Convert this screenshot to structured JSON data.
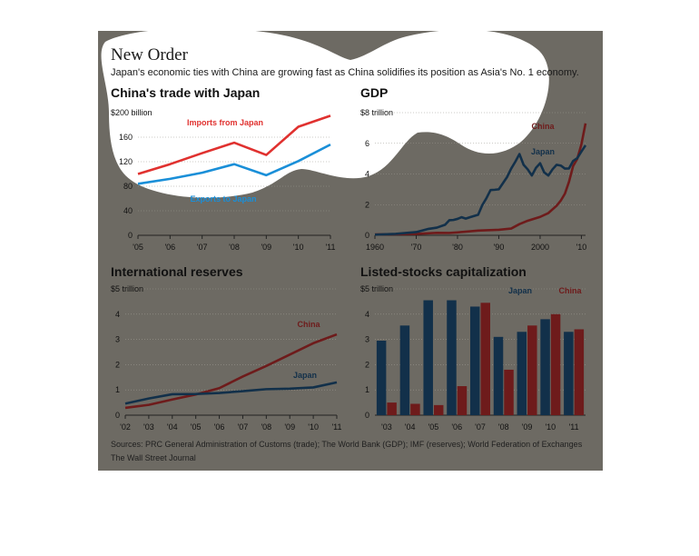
{
  "title": "New Order",
  "subtitle": "Japan's economic ties with China are growing fast as China solidifies its position as Asia's No. 1 economy.",
  "footer": {
    "sources": "Sources: PRC General Administration of Customs (trade); The World Bank (GDP); IMF (reserves); World Federation of Exchanges",
    "credit": "The Wall Street Journal"
  },
  "colors": {
    "background": "#6d6a63",
    "highlight": "#ffffff",
    "china_red": "#6e1b1b",
    "japan_blue": "#12304a",
    "imports_red": "#e0312f",
    "exports_blue": "#1a8fd8"
  },
  "chart_data": [
    {
      "type": "line",
      "title": "China's trade with Japan",
      "yunit_label": "$200 billion",
      "ylim": [
        0,
        200
      ],
      "yticks": [
        0,
        40,
        80,
        120,
        160,
        200
      ],
      "x": [
        2005,
        2006,
        2007,
        2008,
        2009,
        2010,
        2011
      ],
      "xtick_labels": [
        "'05",
        "'06",
        "'07",
        "'08",
        "'09",
        "'10",
        "'11"
      ],
      "series": [
        {
          "name": "Imports from Japan",
          "values": [
            100,
            116,
            134,
            151,
            131,
            177,
            195
          ]
        },
        {
          "name": "Exports to Japan",
          "values": [
            84,
            92,
            102,
            116,
            98,
            121,
            148
          ]
        }
      ]
    },
    {
      "type": "line",
      "title": "GDP",
      "yunit_label": "$8 trillion",
      "ylim": [
        0,
        8
      ],
      "yticks": [
        0,
        2,
        4,
        6,
        8
      ],
      "xlim": [
        1960,
        2011
      ],
      "xtick_values": [
        1960,
        1970,
        1980,
        1990,
        2000,
        2010
      ],
      "xtick_labels": [
        "1960",
        "'70",
        "'80",
        "'90",
        "2000",
        "'10"
      ],
      "series": [
        {
          "name": "China",
          "points": [
            [
              1960,
              0.06
            ],
            [
              1965,
              0.07
            ],
            [
              1970,
              0.09
            ],
            [
              1975,
              0.16
            ],
            [
              1978,
              0.15
            ],
            [
              1980,
              0.19
            ],
            [
              1985,
              0.31
            ],
            [
              1990,
              0.36
            ],
            [
              1993,
              0.44
            ],
            [
              1995,
              0.73
            ],
            [
              1997,
              0.95
            ],
            [
              2000,
              1.2
            ],
            [
              2002,
              1.45
            ],
            [
              2004,
              1.93
            ],
            [
              2005,
              2.26
            ],
            [
              2006,
              2.71
            ],
            [
              2007,
              3.49
            ],
            [
              2008,
              4.52
            ],
            [
              2009,
              4.99
            ],
            [
              2010,
              5.93
            ],
            [
              2011,
              7.3
            ]
          ]
        },
        {
          "name": "Japan",
          "points": [
            [
              1960,
              0.04
            ],
            [
              1965,
              0.09
            ],
            [
              1970,
              0.21
            ],
            [
              1973,
              0.42
            ],
            [
              1975,
              0.5
            ],
            [
              1977,
              0.69
            ],
            [
              1978,
              0.98
            ],
            [
              1979,
              1.0
            ],
            [
              1980,
              1.07
            ],
            [
              1981,
              1.18
            ],
            [
              1982,
              1.09
            ],
            [
              1983,
              1.18
            ],
            [
              1984,
              1.26
            ],
            [
              1985,
              1.34
            ],
            [
              1986,
              1.97
            ],
            [
              1987,
              2.42
            ],
            [
              1988,
              2.95
            ],
            [
              1989,
              2.97
            ],
            [
              1990,
              3.0
            ],
            [
              1991,
              3.4
            ],
            [
              1992,
              3.8
            ],
            [
              1993,
              4.35
            ],
            [
              1994,
              4.8
            ],
            [
              1995,
              5.3
            ],
            [
              1996,
              4.6
            ],
            [
              1997,
              4.3
            ],
            [
              1998,
              3.9
            ],
            [
              1999,
              4.4
            ],
            [
              2000,
              4.7
            ],
            [
              2001,
              4.1
            ],
            [
              2002,
              3.9
            ],
            [
              2003,
              4.3
            ],
            [
              2004,
              4.6
            ],
            [
              2005,
              4.55
            ],
            [
              2006,
              4.35
            ],
            [
              2007,
              4.36
            ],
            [
              2008,
              4.85
            ],
            [
              2009,
              5.03
            ],
            [
              2010,
              5.46
            ],
            [
              2011,
              5.87
            ]
          ]
        }
      ]
    },
    {
      "type": "line",
      "title": "International reserves",
      "yunit_label": "$5 trillion",
      "ylim": [
        0,
        5
      ],
      "yticks": [
        0,
        1,
        2,
        3,
        4,
        5
      ],
      "x": [
        2002,
        2003,
        2004,
        2005,
        2006,
        2007,
        2008,
        2009,
        2010,
        2011
      ],
      "xtick_labels": [
        "'02",
        "'03",
        "'04",
        "'05",
        "'06",
        "'07",
        "'08",
        "'09",
        "'10",
        "'11"
      ],
      "series": [
        {
          "name": "China",
          "values": [
            0.29,
            0.41,
            0.62,
            0.82,
            1.07,
            1.53,
            1.95,
            2.4,
            2.85,
            3.2
          ]
        },
        {
          "name": "Japan",
          "values": [
            0.46,
            0.66,
            0.83,
            0.84,
            0.88,
            0.95,
            1.03,
            1.05,
            1.1,
            1.3
          ]
        }
      ]
    },
    {
      "type": "bar",
      "title": "Listed-stocks capitalization",
      "yunit_label": "$5 trillion",
      "ylim": [
        0,
        5
      ],
      "yticks": [
        0,
        1,
        2,
        3,
        4,
        5
      ],
      "categories": [
        "'03",
        "'04",
        "'05",
        "'06",
        "'07",
        "'08",
        "'09",
        "'10",
        "'11"
      ],
      "series": [
        {
          "name": "Japan",
          "values": [
            2.95,
            3.55,
            4.55,
            4.55,
            4.3,
            3.1,
            3.3,
            3.8,
            3.3
          ]
        },
        {
          "name": "China",
          "values": [
            0.5,
            0.45,
            0.4,
            1.15,
            4.45,
            1.8,
            3.55,
            4.0,
            3.4
          ]
        }
      ]
    }
  ]
}
